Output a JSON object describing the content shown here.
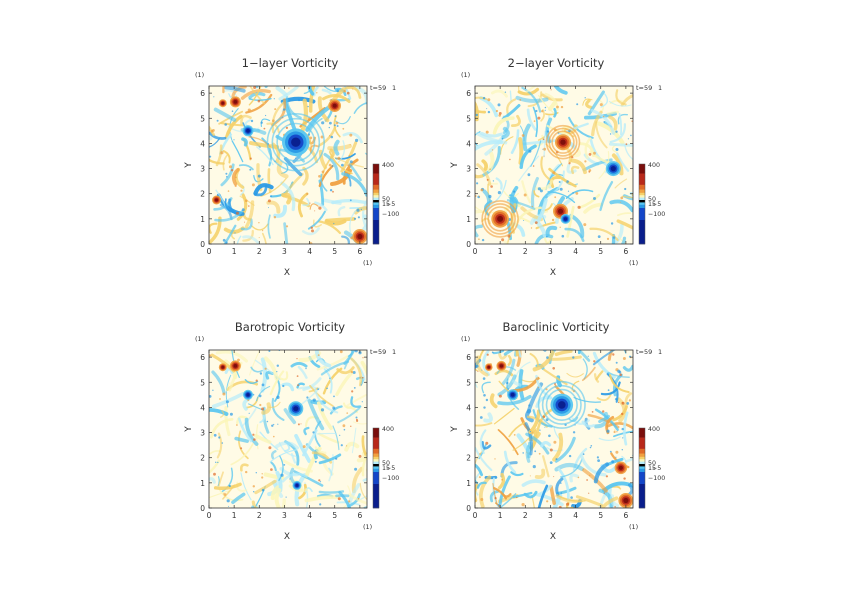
{
  "colors": {
    "colorbar": [
      "#0a1e8c",
      "#1446c8",
      "#2a9ae6",
      "#59c6f0",
      "#b7ecfa",
      "#fbf5b8",
      "#f5d16a",
      "#f0a040",
      "#e06a28",
      "#b8281a",
      "#7a0e0c"
    ],
    "background_field": "#fffbe6",
    "axis": "#333333"
  },
  "chart_data": [
    {
      "type": "heatmap",
      "title": "1−layer Vorticity",
      "xlabel": "X",
      "ylabel": "Y",
      "unit_label": "(1)",
      "time_label": "t=59",
      "time_unit": "1",
      "xlim": [
        0,
        6.283
      ],
      "ylim": [
        0,
        6.283
      ],
      "xticks": [
        "0",
        "1",
        "2",
        "3",
        "4",
        "5",
        "6"
      ],
      "yticks": [
        "0",
        "1",
        "2",
        "3",
        "4",
        "5",
        "6"
      ],
      "colorbar": {
        "top": "400",
        "mid": "50",
        "mid2": "15",
        "mid3": "−5",
        "bottom": "−100"
      },
      "vortices": [
        {
          "x": 3.45,
          "y": 4.05,
          "r": 0.55,
          "sign": -1
        },
        {
          "x": 1.05,
          "y": 5.65,
          "r": 0.22,
          "sign": 1
        },
        {
          "x": 0.55,
          "y": 5.6,
          "r": 0.16,
          "sign": 1
        },
        {
          "x": 1.55,
          "y": 4.5,
          "r": 0.22,
          "sign": -1
        },
        {
          "x": 5.0,
          "y": 5.5,
          "r": 0.25,
          "sign": 1
        },
        {
          "x": 0.3,
          "y": 1.75,
          "r": 0.18,
          "sign": 1
        },
        {
          "x": 6.0,
          "y": 0.3,
          "r": 0.3,
          "sign": 1
        }
      ]
    },
    {
      "type": "heatmap",
      "title": "2−layer Vorticity",
      "xlabel": "X",
      "ylabel": "Y",
      "unit_label": "(1)",
      "time_label": "t=59",
      "time_unit": "1",
      "xlim": [
        0,
        6.283
      ],
      "ylim": [
        0,
        6.283
      ],
      "xticks": [
        "0",
        "1",
        "2",
        "3",
        "4",
        "5",
        "6"
      ],
      "yticks": [
        "0",
        "1",
        "2",
        "3",
        "4",
        "5",
        "6"
      ],
      "colorbar": {
        "top": "400",
        "mid": "50",
        "mid2": "15",
        "mid3": "−5",
        "bottom": "−100"
      },
      "vortices": [
        {
          "x": 3.5,
          "y": 4.05,
          "r": 0.32,
          "sign": 1
        },
        {
          "x": 3.4,
          "y": 1.3,
          "r": 0.3,
          "sign": 1
        },
        {
          "x": 1.0,
          "y": 1.0,
          "r": 0.35,
          "sign": 1
        },
        {
          "x": 5.5,
          "y": 3.0,
          "r": 0.3,
          "sign": -1
        },
        {
          "x": 3.6,
          "y": 1.0,
          "r": 0.2,
          "sign": -1
        }
      ]
    },
    {
      "type": "heatmap",
      "title": "Barotropic Vorticity",
      "xlabel": "X",
      "ylabel": "Y",
      "unit_label": "(1)",
      "time_label": "t=59",
      "time_unit": "1",
      "xlim": [
        0,
        6.283
      ],
      "ylim": [
        0,
        6.283
      ],
      "xticks": [
        "0",
        "1",
        "2",
        "3",
        "4",
        "5",
        "6"
      ],
      "yticks": [
        "0",
        "1",
        "2",
        "3",
        "4",
        "5",
        "6"
      ],
      "colorbar": {
        "top": "400",
        "mid": "50",
        "mid2": "15",
        "mid3": "−5",
        "bottom": "−100"
      },
      "vortices": [
        {
          "x": 3.45,
          "y": 3.95,
          "r": 0.3,
          "sign": -1
        },
        {
          "x": 1.05,
          "y": 5.65,
          "r": 0.22,
          "sign": 1
        },
        {
          "x": 0.55,
          "y": 5.6,
          "r": 0.16,
          "sign": 1
        },
        {
          "x": 1.55,
          "y": 4.5,
          "r": 0.2,
          "sign": -1
        },
        {
          "x": 3.5,
          "y": 0.9,
          "r": 0.18,
          "sign": -1
        }
      ]
    },
    {
      "type": "heatmap",
      "title": "Baroclinic Vorticity",
      "xlabel": "X",
      "ylabel": "Y",
      "unit_label": "(1)",
      "time_label": "t=59",
      "time_unit": "1",
      "xlim": [
        0,
        6.283
      ],
      "ylim": [
        0,
        6.283
      ],
      "xticks": [
        "0",
        "1",
        "2",
        "3",
        "4",
        "5",
        "6"
      ],
      "yticks": [
        "0",
        "1",
        "2",
        "3",
        "4",
        "5",
        "6"
      ],
      "colorbar": {
        "top": "400",
        "mid": "50",
        "mid2": "15",
        "mid3": "−5",
        "bottom": "−100"
      },
      "vortices": [
        {
          "x": 3.45,
          "y": 4.1,
          "r": 0.45,
          "sign": -1
        },
        {
          "x": 1.05,
          "y": 5.65,
          "r": 0.2,
          "sign": 1
        },
        {
          "x": 0.55,
          "y": 5.6,
          "r": 0.15,
          "sign": 1
        },
        {
          "x": 1.5,
          "y": 4.5,
          "r": 0.22,
          "sign": -1
        },
        {
          "x": 6.0,
          "y": 0.3,
          "r": 0.3,
          "sign": 1
        },
        {
          "x": 5.8,
          "y": 1.6,
          "r": 0.25,
          "sign": 1
        }
      ]
    }
  ]
}
